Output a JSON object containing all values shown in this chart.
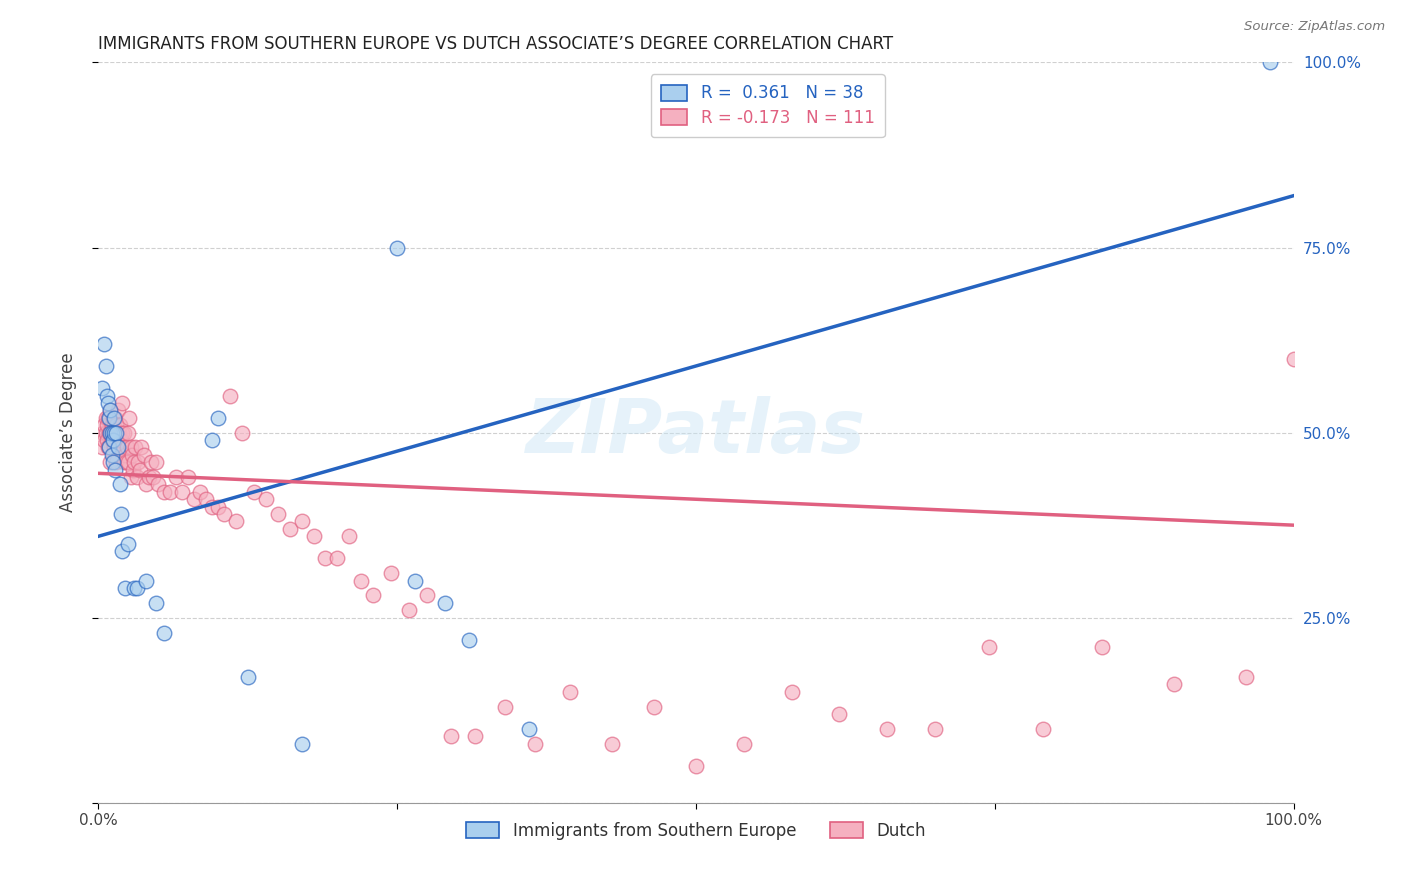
{
  "title": "IMMIGRANTS FROM SOUTHERN EUROPE VS DUTCH ASSOCIATE’S DEGREE CORRELATION CHART",
  "source": "Source: ZipAtlas.com",
  "ylabel": "Associate’s Degree",
  "background_color": "#ffffff",
  "grid_color": "#d0d0d0",
  "xlim": [
    0,
    1.0
  ],
  "ylim": [
    0,
    1.0
  ],
  "blue_color_fill": "#aacfee",
  "blue_color_edge": "#2563c0",
  "pink_color_fill": "#f5b0c0",
  "pink_color_edge": "#e06080",
  "blue_trend_x": [
    0.0,
    1.0
  ],
  "blue_trend_y": [
    0.36,
    0.82
  ],
  "pink_trend_x": [
    0.0,
    1.0
  ],
  "pink_trend_y": [
    0.445,
    0.375
  ],
  "blue_label": "Immigrants from Southern Europe",
  "pink_label": "Dutch",
  "blue_R": "0.361",
  "blue_N": "38",
  "pink_R": "-0.173",
  "pink_N": "111",
  "yticks": [
    0.0,
    0.25,
    0.5,
    0.75,
    1.0
  ],
  "xticks": [
    0.0,
    0.25,
    0.5,
    0.75,
    1.0
  ],
  "blue_scatter_x": [
    0.003,
    0.005,
    0.006,
    0.007,
    0.008,
    0.009,
    0.009,
    0.01,
    0.01,
    0.011,
    0.011,
    0.012,
    0.012,
    0.013,
    0.013,
    0.014,
    0.015,
    0.016,
    0.018,
    0.019,
    0.02,
    0.022,
    0.025,
    0.03,
    0.032,
    0.04,
    0.048,
    0.055,
    0.095,
    0.1,
    0.125,
    0.17,
    0.25,
    0.265,
    0.29,
    0.31,
    0.36,
    0.98
  ],
  "blue_scatter_y": [
    0.56,
    0.62,
    0.59,
    0.55,
    0.54,
    0.52,
    0.48,
    0.53,
    0.5,
    0.5,
    0.47,
    0.49,
    0.46,
    0.52,
    0.5,
    0.45,
    0.5,
    0.48,
    0.43,
    0.39,
    0.34,
    0.29,
    0.35,
    0.29,
    0.29,
    0.3,
    0.27,
    0.23,
    0.49,
    0.52,
    0.17,
    0.08,
    0.75,
    0.3,
    0.27,
    0.22,
    0.1,
    1.0
  ],
  "pink_scatter_x": [
    0.003,
    0.004,
    0.005,
    0.005,
    0.006,
    0.006,
    0.007,
    0.007,
    0.008,
    0.008,
    0.009,
    0.009,
    0.01,
    0.01,
    0.01,
    0.011,
    0.011,
    0.011,
    0.012,
    0.012,
    0.012,
    0.013,
    0.013,
    0.013,
    0.014,
    0.014,
    0.015,
    0.015,
    0.015,
    0.016,
    0.016,
    0.017,
    0.017,
    0.018,
    0.018,
    0.019,
    0.02,
    0.02,
    0.02,
    0.021,
    0.021,
    0.022,
    0.023,
    0.024,
    0.025,
    0.025,
    0.026,
    0.027,
    0.027,
    0.028,
    0.029,
    0.03,
    0.031,
    0.032,
    0.033,
    0.035,
    0.036,
    0.038,
    0.04,
    0.042,
    0.044,
    0.046,
    0.048,
    0.05,
    0.055,
    0.06,
    0.065,
    0.07,
    0.075,
    0.08,
    0.085,
    0.09,
    0.095,
    0.1,
    0.105,
    0.11,
    0.115,
    0.12,
    0.13,
    0.14,
    0.15,
    0.16,
    0.17,
    0.18,
    0.19,
    0.2,
    0.21,
    0.22,
    0.23,
    0.245,
    0.26,
    0.275,
    0.295,
    0.315,
    0.34,
    0.365,
    0.395,
    0.43,
    0.465,
    0.5,
    0.54,
    0.58,
    0.62,
    0.66,
    0.7,
    0.745,
    0.79,
    0.84,
    0.9,
    0.96,
    1.0
  ],
  "pink_scatter_y": [
    0.48,
    0.5,
    0.49,
    0.51,
    0.5,
    0.52,
    0.49,
    0.51,
    0.48,
    0.52,
    0.5,
    0.48,
    0.5,
    0.53,
    0.46,
    0.49,
    0.51,
    0.5,
    0.5,
    0.52,
    0.47,
    0.49,
    0.51,
    0.48,
    0.5,
    0.52,
    0.49,
    0.51,
    0.46,
    0.5,
    0.53,
    0.48,
    0.5,
    0.49,
    0.51,
    0.49,
    0.5,
    0.54,
    0.48,
    0.46,
    0.5,
    0.47,
    0.46,
    0.48,
    0.5,
    0.46,
    0.52,
    0.48,
    0.44,
    0.47,
    0.45,
    0.46,
    0.48,
    0.44,
    0.46,
    0.45,
    0.48,
    0.47,
    0.43,
    0.44,
    0.46,
    0.44,
    0.46,
    0.43,
    0.42,
    0.42,
    0.44,
    0.42,
    0.44,
    0.41,
    0.42,
    0.41,
    0.4,
    0.4,
    0.39,
    0.55,
    0.38,
    0.5,
    0.42,
    0.41,
    0.39,
    0.37,
    0.38,
    0.36,
    0.33,
    0.33,
    0.36,
    0.3,
    0.28,
    0.31,
    0.26,
    0.28,
    0.09,
    0.09,
    0.13,
    0.08,
    0.15,
    0.08,
    0.13,
    0.05,
    0.08,
    0.15,
    0.12,
    0.1,
    0.1,
    0.21,
    0.1,
    0.21,
    0.16,
    0.17,
    0.6
  ]
}
